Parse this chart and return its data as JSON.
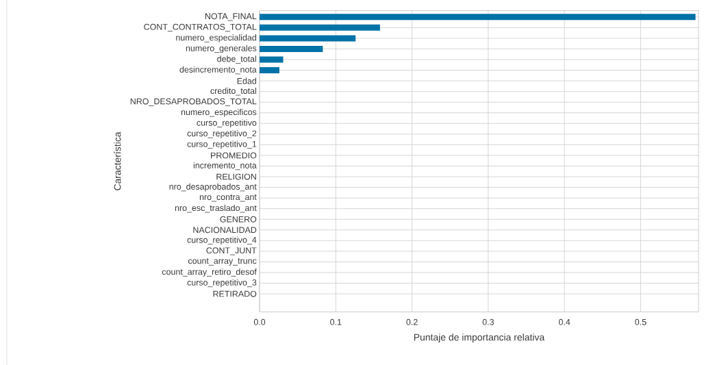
{
  "chart_data": {
    "type": "bar",
    "orientation": "horizontal",
    "xlabel": "Puntaje de importancia relativa",
    "ylabel": "Característica",
    "categories": [
      "NOTA_FINAL",
      "CONT_CONTRATOS_TOTAL",
      "numero_especialidad",
      "numero_generales",
      "debe_total",
      "desincremento_nota",
      "Edad",
      "credito_total",
      "NRO_DESAPROBADOS_TOTAL",
      "numero_especificos",
      "curso_repetitivo",
      "curso_repetitivo_2",
      "curso_repetitivo_1",
      "PROMEDIO",
      "incremento_nota",
      "RELIGION",
      "nro_desaprobados_ant",
      "nro_contra_ant",
      "nro_esc_traslado_ant",
      "GENERO",
      "NACIONALIDAD",
      "curso_repetitivo_4",
      "CONT_JUNT",
      "count_array_trunc",
      "count_array_retiro_desof",
      "curso_repetitivo_3",
      "RETIRADO"
    ],
    "values": [
      0.572,
      0.158,
      0.126,
      0.083,
      0.031,
      0.026,
      0,
      0,
      0,
      0,
      0,
      0,
      0,
      0,
      0,
      0,
      0,
      0,
      0,
      0,
      0,
      0,
      0,
      0,
      0,
      0,
      0
    ],
    "color": "#0072a8",
    "xlim": [
      0,
      0.576
    ],
    "xticks": [
      {
        "value": 0,
        "label": "0.0"
      },
      0.1,
      0.2,
      0.3,
      0.4,
      0.5
    ],
    "grid": true
  }
}
